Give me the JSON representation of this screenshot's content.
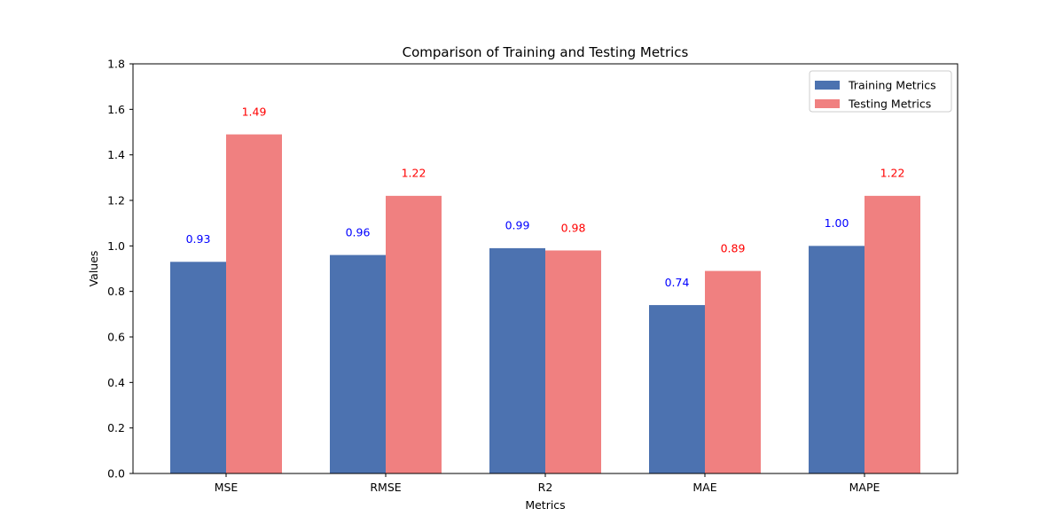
{
  "chart_data": {
    "type": "bar",
    "title": "Comparison of Training and Testing Metrics",
    "xlabel": "Metrics",
    "ylabel": "Values",
    "categories": [
      "MSE",
      "RMSE",
      "R2",
      "MAE",
      "MAPE"
    ],
    "ylim": [
      0,
      1.8
    ],
    "yticks": [
      "0.0",
      "0.2",
      "0.4",
      "0.6",
      "0.8",
      "1.0",
      "1.2",
      "1.4",
      "1.6",
      "1.8"
    ],
    "ytick_values": [
      0,
      0.2,
      0.4,
      0.6,
      0.8,
      1.0,
      1.2,
      1.4,
      1.6,
      1.8
    ],
    "grid": false,
    "legend_position": "top-right",
    "series": [
      {
        "name": "Training Metrics",
        "color": "#4c72b0",
        "label_color": "#0000ff",
        "values": [
          0.93,
          0.96,
          0.99,
          0.74,
          1.0
        ],
        "labels": [
          "0.93",
          "0.96",
          "0.99",
          "0.74",
          "1.00"
        ]
      },
      {
        "name": "Testing Metrics",
        "color": "#f08080",
        "label_color": "#ff0000",
        "values": [
          1.49,
          1.22,
          0.98,
          0.89,
          1.22
        ],
        "labels": [
          "1.49",
          "1.22",
          "0.98",
          "0.89",
          "1.22"
        ]
      }
    ]
  }
}
